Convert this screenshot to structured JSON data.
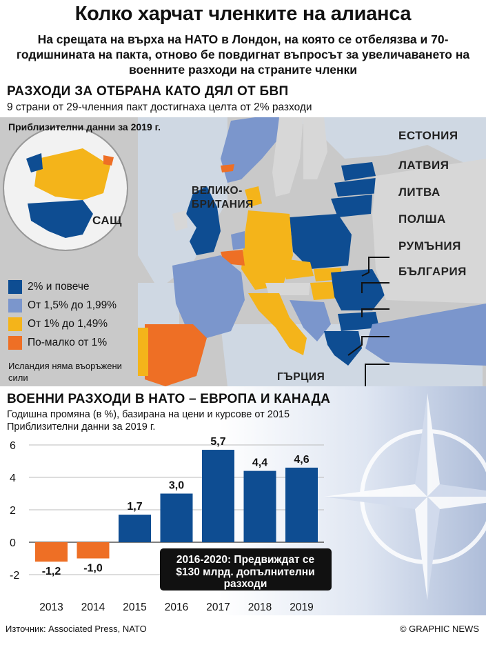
{
  "title": "Колко харчат членките на алианса",
  "intro": "На срещата на върха на НАТО в Лондон, на която се отбелязва и 70-годишнината на пакта, отново бе повдигнат въпросът за увеличаването на военните разходи на страните членки",
  "section1": {
    "heading": "РАЗХОДИ ЗА ОТБРАНА КАТО ДЯЛ ОТ БВП",
    "subheading": "9 страни от 29-членния пакт достигнаха целта от 2% разходи",
    "approx": "Приблизителни данни за 2019 г.",
    "legend": [
      {
        "label": "2% и повече",
        "color": "#0e4d92"
      },
      {
        "label": "От 1,5% до 1,99%",
        "color": "#7b96cc"
      },
      {
        "label": "От 1% до 1,49%",
        "color": "#f4b41a"
      },
      {
        "label": "По-малко от 1%",
        "color": "#ee6f25"
      }
    ],
    "iceland_note": "Исландия няма въоръжени сили",
    "country_labels": {
      "usa": "САЩ",
      "uk_line1": "ВЕЛИКО-",
      "uk_line2": "БРИТАНИЯ",
      "estonia": "ЕСТОНИЯ",
      "latvia": "ЛАТВИЯ",
      "lithuania": "ЛИТВА",
      "poland": "ПОЛША",
      "romania": "РУМЪНИЯ",
      "bulgaria": "БЪЛГАРИЯ",
      "greece": "ГЪРЦИЯ"
    }
  },
  "section2": {
    "heading": "ВОЕННИ РАЗХОДИ В НАТО – ЕВРОПА И КАНАДА",
    "subheading1": "Годишна промяна (в %), базирана на цени и курсове от 2015",
    "subheading2": "Приблизителни данни за 2019 г.",
    "callout_line1": "2016-2020:  Предвиждат се",
    "callout_line2": "$130 млрд. допълнителни",
    "callout_line3": "разходи"
  },
  "chart_data": {
    "type": "bar",
    "categories": [
      "2013",
      "2014",
      "2015",
      "2016",
      "2017",
      "2018",
      "2019"
    ],
    "values": [
      -1.2,
      -1.0,
      1.7,
      3.0,
      5.7,
      4.4,
      4.6
    ],
    "value_labels": [
      "-1,2",
      "-1,0",
      "1,7",
      "3,0",
      "5,7",
      "4,4",
      "4,6"
    ],
    "yticks": [
      6,
      4,
      2,
      0,
      -2
    ],
    "ylim": [
      -3,
      6.5
    ],
    "positive_color": "#0e4d92",
    "negative_color": "#ee6f25",
    "grid": true
  },
  "footer": {
    "source": "Източник: Associated Press, NATO",
    "credit": "© GRAPHIC NEWS"
  }
}
